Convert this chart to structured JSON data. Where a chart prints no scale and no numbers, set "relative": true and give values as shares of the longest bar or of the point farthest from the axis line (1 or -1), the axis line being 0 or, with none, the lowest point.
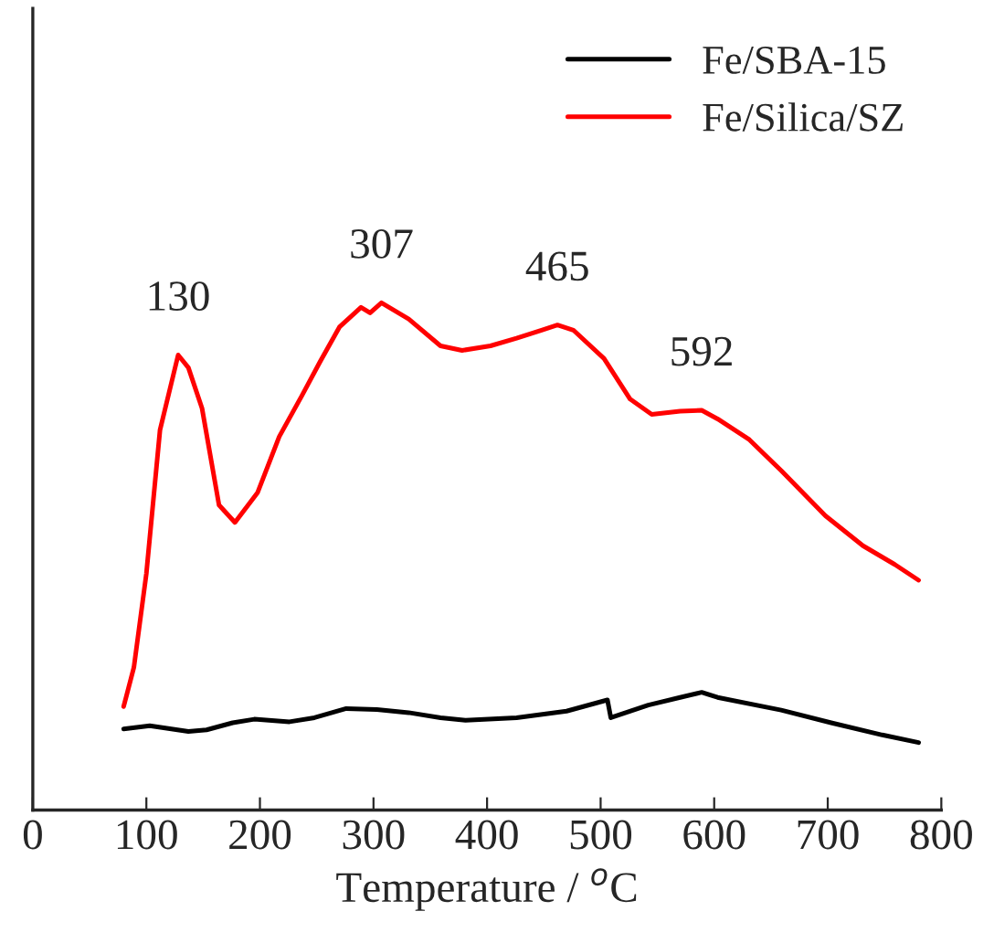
{
  "chart_data": {
    "type": "line",
    "relative": true,
    "xlabel": "Temperature / $^{o}$C",
    "xlim": [
      0,
      800
    ],
    "xticks": [
      0,
      100,
      200,
      300,
      400,
      500,
      600,
      700,
      800
    ],
    "tick_labels": "x",
    "grid": false,
    "legend": "top right",
    "series": [
      {
        "name": "Fe/SBA-15",
        "color": "#000000",
        "x": [
          80,
          103,
          137,
          153,
          176,
          195,
          226,
          248,
          276,
          303,
          331,
          359,
          381,
          426,
          470,
          506,
          509,
          542,
          570,
          589,
          603,
          659,
          703,
          748,
          780
        ],
        "values": [
          0.16,
          0.166,
          0.155,
          0.158,
          0.172,
          0.179,
          0.174,
          0.182,
          0.2,
          0.198,
          0.192,
          0.182,
          0.177,
          0.182,
          0.195,
          0.217,
          0.182,
          0.207,
          0.222,
          0.232,
          0.222,
          0.197,
          0.172,
          0.148,
          0.133
        ]
      },
      {
        "name": "Fe/Silica/SZ",
        "color": "#ff0000",
        "x": [
          80,
          89,
          100,
          112,
          128,
          137,
          149,
          164,
          178,
          198,
          217,
          237,
          253,
          270,
          289,
          297,
          307,
          331,
          359,
          378,
          403,
          426,
          448,
          462,
          476,
          503,
          526,
          545,
          570,
          589,
          603,
          631,
          659,
          698,
          731,
          759,
          780
        ],
        "values": [
          0.204,
          0.281,
          0.466,
          0.749,
          0.897,
          0.872,
          0.792,
          0.601,
          0.567,
          0.626,
          0.736,
          0.817,
          0.884,
          0.952,
          0.991,
          0.98,
          1.0,
          0.968,
          0.915,
          0.906,
          0.915,
          0.93,
          0.946,
          0.956,
          0.946,
          0.89,
          0.81,
          0.78,
          0.786,
          0.788,
          0.771,
          0.73,
          0.669,
          0.58,
          0.521,
          0.484,
          0.453
        ]
      }
    ],
    "annotations": [
      {
        "text": "130",
        "x": 128,
        "y": 0.897
      },
      {
        "text": "307",
        "x": 307,
        "y": 1.0
      },
      {
        "text": "465",
        "x": 462,
        "y": 0.956
      },
      {
        "text": "592",
        "x": 589,
        "y": 0.788
      }
    ]
  }
}
